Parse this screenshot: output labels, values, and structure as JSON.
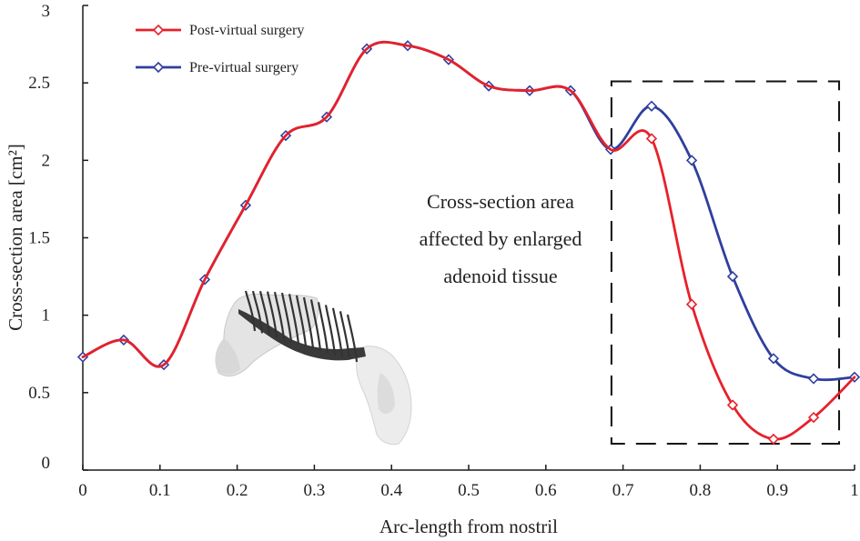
{
  "chart_data": {
    "type": "line",
    "title": "",
    "xlabel": "Arc-length from nostril",
    "ylabel": "Cross-section area [cm²]",
    "xlim": [
      0,
      1
    ],
    "ylim": [
      0,
      3
    ],
    "xticks": [
      0,
      0.1,
      0.2,
      0.3,
      0.4,
      0.5,
      0.6,
      0.7,
      0.8,
      0.9,
      1
    ],
    "xtick_labels": [
      "0",
      "0.1",
      "0.2",
      "0.3",
      "0.4",
      "0.5",
      "0.6",
      "0.7",
      "0.8",
      "0.9",
      "1"
    ],
    "yticks": [
      0,
      0.5,
      1,
      1.5,
      2,
      2.5,
      3
    ],
    "ytick_labels": [
      "0",
      "0.5",
      "1",
      "1.5",
      "2",
      "2.5",
      "3"
    ],
    "grid": false,
    "legend_position": "top-left",
    "series": [
      {
        "name": "Post-virtual surgery",
        "color": "#e8202a",
        "x": [
          0,
          0.053,
          0.105,
          0.158,
          0.211,
          0.263,
          0.316,
          0.368,
          0.421,
          0.474,
          0.526,
          0.579,
          0.632,
          0.684,
          0.737,
          0.789,
          0.842,
          0.895,
          0.947,
          1.0
        ],
        "y": [
          0.73,
          0.84,
          0.68,
          1.23,
          1.71,
          2.16,
          2.28,
          2.72,
          2.74,
          2.65,
          2.48,
          2.45,
          2.45,
          2.07,
          2.14,
          1.07,
          0.42,
          0.2,
          0.34,
          0.6
        ],
        "draw_markers": [
          false,
          false,
          false,
          false,
          false,
          false,
          false,
          false,
          false,
          false,
          false,
          false,
          false,
          false,
          true,
          true,
          true,
          true,
          true,
          false
        ]
      },
      {
        "name": "Pre-virtual surgery",
        "color": "#2f3f9e",
        "x": [
          0,
          0.053,
          0.105,
          0.158,
          0.211,
          0.263,
          0.316,
          0.368,
          0.421,
          0.474,
          0.526,
          0.579,
          0.632,
          0.684,
          0.737,
          0.789,
          0.842,
          0.895,
          0.947,
          1.0
        ],
        "y": [
          0.73,
          0.84,
          0.68,
          1.23,
          1.71,
          2.16,
          2.28,
          2.72,
          2.74,
          2.65,
          2.48,
          2.45,
          2.45,
          2.07,
          2.35,
          2.0,
          1.25,
          0.72,
          0.59,
          0.6
        ],
        "draw_markers": [
          true,
          true,
          true,
          true,
          true,
          true,
          true,
          true,
          true,
          true,
          true,
          true,
          true,
          true,
          true,
          true,
          true,
          true,
          true,
          true
        ]
      }
    ],
    "highlight_region": {
      "x_range": [
        0.685,
        0.98
      ],
      "y_range": [
        0.17,
        2.51
      ],
      "label_lines": [
        "Cross-section area",
        "affected by enlarged",
        "adenoid tissue"
      ]
    },
    "inset": {
      "type": "airway-model-illustration"
    }
  }
}
